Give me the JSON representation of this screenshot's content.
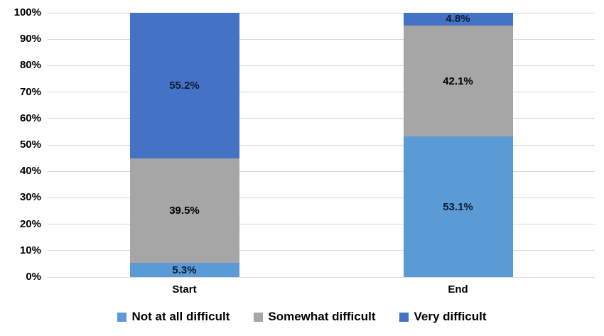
{
  "chart_data": {
    "type": "bar",
    "variant": "stacked-100",
    "title": "",
    "xlabel": "",
    "ylabel": "",
    "categories": [
      "Start",
      "End"
    ],
    "series": [
      {
        "name": "Not at all difficult",
        "color": "#5B9BD5",
        "values": [
          5.3,
          53.1
        ],
        "data_labels": [
          "5.3%",
          "53.1%"
        ],
        "label_color": "#0d1b33"
      },
      {
        "name": "Somewhat difficult",
        "color": "#A6A6A6",
        "values": [
          39.5,
          42.1
        ],
        "data_labels": [
          "39.5%",
          "42.1%"
        ],
        "label_color": "#000000"
      },
      {
        "name": "Very difficult",
        "color": "#4472C4",
        "values": [
          55.2,
          4.8
        ],
        "data_labels": [
          "55.2%",
          "4.8%"
        ],
        "label_color": "#0d1b33"
      }
    ],
    "y_axis": {
      "min": 0,
      "max": 100,
      "step": 10,
      "tick_labels": [
        "0%",
        "10%",
        "20%",
        "30%",
        "40%",
        "50%",
        "60%",
        "70%",
        "80%",
        "90%",
        "100%"
      ]
    },
    "grid": true,
    "gridline_color": "#D9D9D9",
    "background": "#FFFFFF",
    "legend": {
      "position": "bottom",
      "items": [
        "Not at all difficult",
        "Somewhat difficult",
        "Very difficult"
      ]
    }
  }
}
